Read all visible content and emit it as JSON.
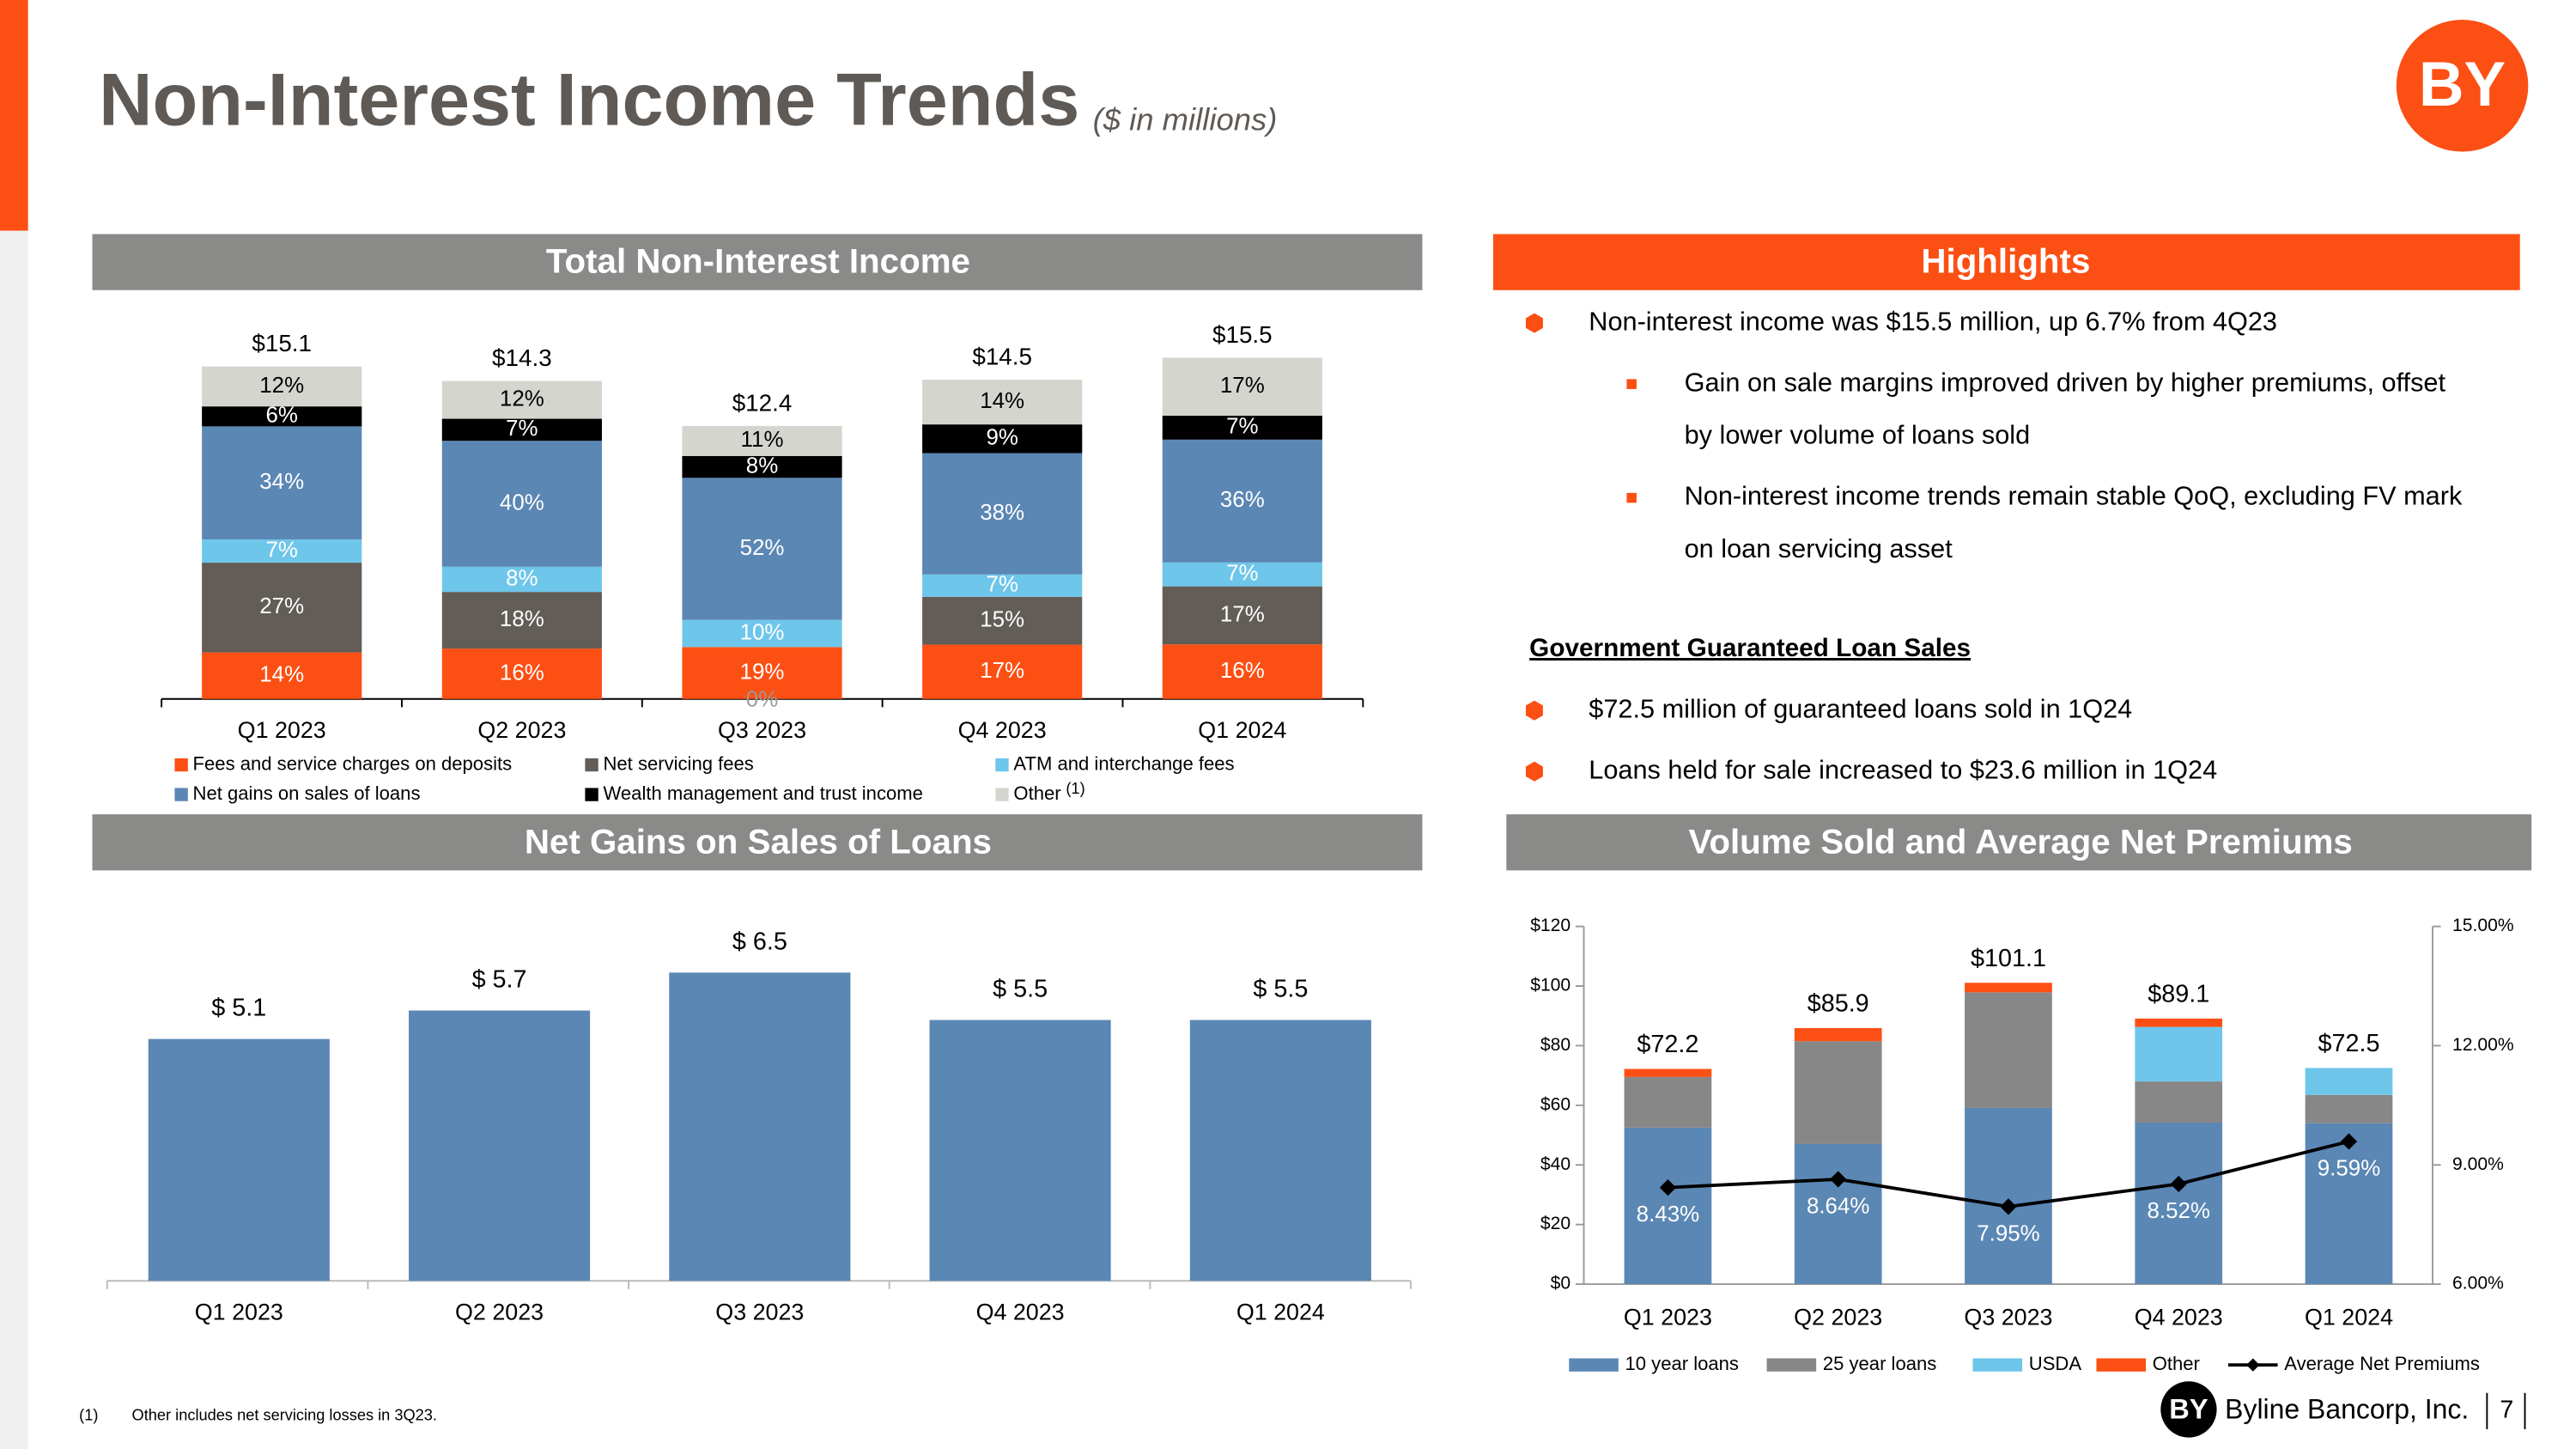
{
  "header": {
    "title": "Non-Interest Income Trends",
    "subtitle": "($ in millions)",
    "logo": "BY"
  },
  "sections": {
    "total": "Total Non-Interest Income",
    "highlights": "Highlights",
    "net_gains": "Net Gains on Sales of Loans",
    "volume": "Volume Sold and Average Net Premiums"
  },
  "chart_data": [
    {
      "type": "stacked_percent_bar",
      "categories": [
        "Q1 2023",
        "Q2 2023",
        "Q3 2023",
        "Q4 2023",
        "Q1 2024"
      ],
      "totals": [
        15.1,
        14.3,
        12.4,
        14.5,
        15.5
      ],
      "total_labels": [
        "$15.1",
        "$14.3",
        "$12.4",
        "$14.5",
        "$15.5"
      ],
      "series": [
        {
          "name": "Fees and service charges on deposits",
          "color": "#fc4f14",
          "values": [
            14,
            16,
            19,
            17,
            16
          ],
          "value_labels": [
            "14%",
            "16%",
            "19%",
            "17%",
            "16%"
          ]
        },
        {
          "name": "Net servicing fees",
          "color": "#625d57",
          "values": [
            27,
            18,
            0,
            15,
            17
          ],
          "value_labels": [
            "27%",
            "18%",
            "0%",
            "15%",
            "17%"
          ]
        },
        {
          "name": "ATM and interchange fees",
          "color": "#6ec6ea",
          "values": [
            7,
            8,
            10,
            7,
            7
          ],
          "value_labels": [
            "7%",
            "8%",
            "10%",
            "7%",
            "7%"
          ]
        },
        {
          "name": "Net gains on sales of loans",
          "color": "#5b87b4",
          "values": [
            34,
            40,
            52,
            38,
            36
          ],
          "value_labels": [
            "34%",
            "40%",
            "52%",
            "38%",
            "36%"
          ]
        },
        {
          "name": "Wealth management and trust income",
          "color": "#000000",
          "values": [
            6,
            7,
            8,
            9,
            7
          ],
          "value_labels": [
            "6%",
            "7%",
            "8%",
            "9%",
            "7%"
          ]
        },
        {
          "name": "Other",
          "footnote_ref": "(1)",
          "color": "#d5d5d0",
          "values": [
            12,
            12,
            11,
            14,
            17
          ],
          "value_labels": [
            "12%",
            "12%",
            "11%",
            "14%",
            "17%"
          ]
        }
      ]
    },
    {
      "type": "bar",
      "categories": [
        "Q1 2023",
        "Q2 2023",
        "Q3 2023",
        "Q4 2023",
        "Q1 2024"
      ],
      "values": [
        5.1,
        5.7,
        6.5,
        5.5,
        5.5
      ],
      "value_labels": [
        "$ 5.1",
        "$ 5.7",
        "$ 6.5",
        "$ 5.5",
        "$ 5.5"
      ],
      "color": "#5b87b4"
    },
    {
      "type": "combo",
      "categories": [
        "Q1 2023",
        "Q2 2023",
        "Q3 2023",
        "Q4 2023",
        "Q1 2024"
      ],
      "totals": [
        72.2,
        85.9,
        101.1,
        89.1,
        72.5
      ],
      "total_labels": [
        "$72.2",
        "$85.9",
        "$101.1",
        "$89.1",
        "$72.5"
      ],
      "ylim": [
        0,
        120
      ],
      "yticks": [
        {
          "value": 0,
          "label": "$0"
        },
        {
          "value": 20,
          "label": "$20"
        },
        {
          "value": 40,
          "label": "$40"
        },
        {
          "value": 60,
          "label": "$60"
        },
        {
          "value": 80,
          "label": "$80"
        },
        {
          "value": 100,
          "label": "$100"
        },
        {
          "value": 120,
          "label": "$120"
        }
      ],
      "y2lim": [
        6,
        15
      ],
      "y2ticks": [
        {
          "value": 6,
          "label": "6.00%"
        },
        {
          "value": 9,
          "label": "9.00%"
        },
        {
          "value": 12,
          "label": "12.00%"
        },
        {
          "value": 15,
          "label": "15.00%"
        }
      ],
      "series": [
        {
          "name": "10 year loans",
          "color": "#5b87b4",
          "values": [
            52.5,
            47,
            59.2,
            54.2,
            54
          ]
        },
        {
          "name": "25 year loans",
          "color": "#878787",
          "values": [
            17,
            34.5,
            38.7,
            13.8,
            9.5
          ]
        },
        {
          "name": "USDA",
          "color": "#6ec6ea",
          "values": [
            0,
            0,
            0,
            18.3,
            9
          ]
        },
        {
          "name": "Other",
          "color": "#fc4f14",
          "values": [
            2.7,
            4.4,
            3.2,
            2.8,
            0
          ]
        },
        {
          "name": "Average Net Premiums",
          "type": "line",
          "axis": "y2",
          "color": "#000000",
          "values": [
            8.43,
            8.64,
            7.95,
            8.52,
            9.59
          ],
          "value_labels": [
            "8.43%",
            "8.64%",
            "7.95%",
            "8.52%",
            "9.59%"
          ]
        }
      ]
    }
  ],
  "highlights": {
    "items": [
      {
        "text": "Non-interest income was $15.5 million, up 6.7% from 4Q23",
        "subitems": [
          {
            "lines": [
              "Gain on sale margins improved driven by higher premiums, offset",
              "by lower volume of loans sold"
            ]
          },
          {
            "lines": [
              "Non-interest income trends remain stable QoQ, excluding FV mark",
              "on loan servicing asset"
            ]
          }
        ]
      }
    ],
    "subheading": "Government Guaranteed Loan Sales",
    "items2": [
      "$72.5 million of guaranteed loans sold in 1Q24",
      "Loans held for sale increased to $23.6 million in 1Q24"
    ]
  },
  "footnote": {
    "marker": "(1)",
    "text": "Other includes net servicing losses in 3Q23."
  },
  "footer": {
    "company": "Byline Bancorp, Inc.",
    "page": "7"
  }
}
